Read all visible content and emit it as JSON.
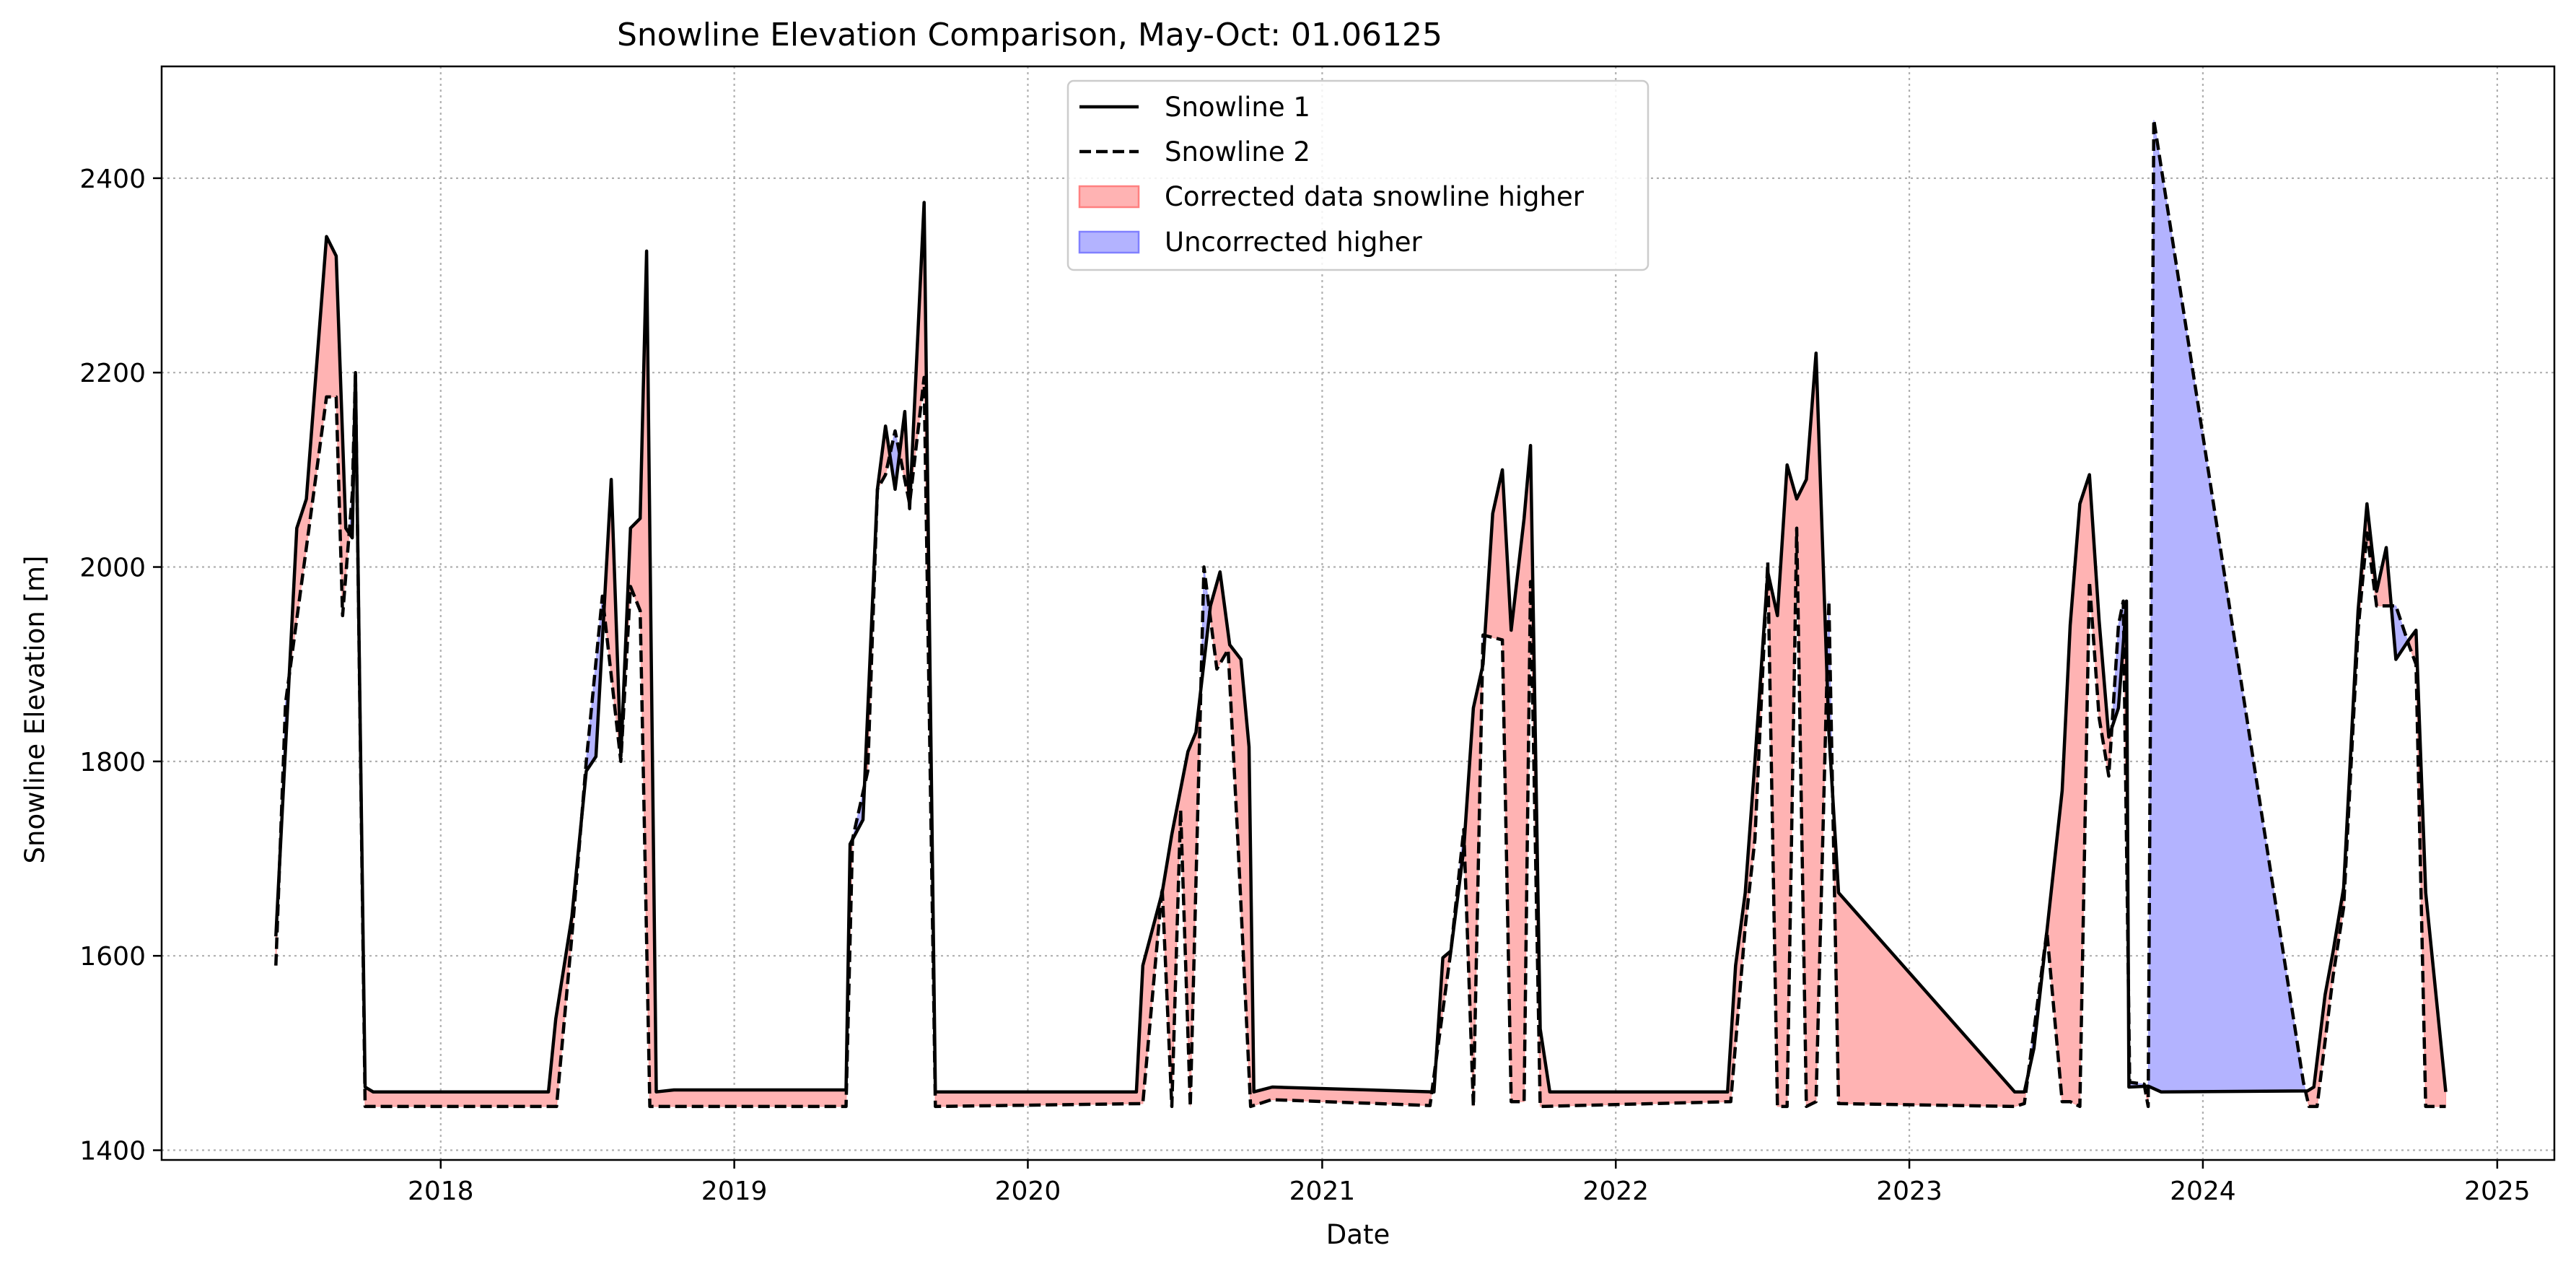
{
  "chart_data": {
    "type": "line",
    "title": "Snowline Elevation Comparison, May-Oct: 01.06125",
    "xlabel": "Date",
    "ylabel": "Snowline Elevation [m]",
    "xlim": [
      "2017-01-19",
      "2025-03-13"
    ],
    "ylim": [
      1390,
      2515
    ],
    "x_ticks": [
      "2018",
      "2019",
      "2020",
      "2021",
      "2022",
      "2023",
      "2024",
      "2025"
    ],
    "y_ticks": [
      1400,
      1600,
      1800,
      2000,
      2200,
      2400
    ],
    "grid": true,
    "legend_position": "top-center",
    "legend": [
      "Snowline 1",
      "Snowline 2",
      "Corrected data snowline higher",
      "Uncorrected higher"
    ],
    "colors": {
      "line": "#000000",
      "fill_higher": "#ffb3b3",
      "fill_higher_edge": "#ff8080",
      "fill_lower": "#b3b3ff",
      "fill_lower_edge": "#8080ff"
    },
    "series": [
      {
        "name": "Snowline 1",
        "style": "solid",
        "points": [
          [
            "2017-06-10",
            1620
          ],
          [
            "2017-07-06",
            2040
          ],
          [
            "2017-07-18",
            2070
          ],
          [
            "2017-08-12",
            2340
          ],
          [
            "2017-08-24",
            2320
          ],
          [
            "2017-09-05",
            2040
          ],
          [
            "2017-09-13",
            2030
          ],
          [
            "2017-09-17",
            2200
          ],
          [
            "2017-09-29",
            1465
          ],
          [
            "2017-10-09",
            1460
          ],
          [
            "2018-05-15",
            1460
          ],
          [
            "2018-05-24",
            1535
          ],
          [
            "2018-06-13",
            1640
          ],
          [
            "2018-07-01",
            1790
          ],
          [
            "2018-07-13",
            1805
          ],
          [
            "2018-08-01",
            2090
          ],
          [
            "2018-08-13",
            1805
          ],
          [
            "2018-08-25",
            2040
          ],
          [
            "2018-09-06",
            2050
          ],
          [
            "2018-09-14",
            2325
          ],
          [
            "2018-09-26",
            1460
          ],
          [
            "2018-10-18",
            1462
          ],
          [
            "2019-05-20",
            1462
          ],
          [
            "2019-05-25",
            1715
          ],
          [
            "2019-06-10",
            1740
          ],
          [
            "2019-06-28",
            2080
          ],
          [
            "2019-07-08",
            2145
          ],
          [
            "2019-07-20",
            2080
          ],
          [
            "2019-08-01",
            2160
          ],
          [
            "2019-08-07",
            2060
          ],
          [
            "2019-08-25",
            2375
          ],
          [
            "2019-09-08",
            1460
          ],
          [
            "2019-10-10",
            1460
          ],
          [
            "2020-05-15",
            1460
          ],
          [
            "2020-05-23",
            1590
          ],
          [
            "2020-06-16",
            1665
          ],
          [
            "2020-06-28",
            1725
          ],
          [
            "2020-07-18",
            1810
          ],
          [
            "2020-07-28",
            1830
          ],
          [
            "2020-08-15",
            1960
          ],
          [
            "2020-08-27",
            1995
          ],
          [
            "2020-09-08",
            1920
          ],
          [
            "2020-09-22",
            1905
          ],
          [
            "2020-10-02",
            1815
          ],
          [
            "2020-10-08",
            1460
          ],
          [
            "2020-10-31",
            1465
          ],
          [
            "2021-05-20",
            1460
          ],
          [
            "2021-05-31",
            1598
          ],
          [
            "2021-06-10",
            1605
          ],
          [
            "2021-06-26",
            1710
          ],
          [
            "2021-07-08",
            1855
          ],
          [
            "2021-07-20",
            1900
          ],
          [
            "2021-08-01",
            2055
          ],
          [
            "2021-08-13",
            2100
          ],
          [
            "2021-08-24",
            1935
          ],
          [
            "2021-09-09",
            2050
          ],
          [
            "2021-09-17",
            2125
          ],
          [
            "2021-09-29",
            1525
          ],
          [
            "2021-10-11",
            1460
          ],
          [
            "2022-05-20",
            1460
          ],
          [
            "2022-05-30",
            1590
          ],
          [
            "2022-06-11",
            1665
          ],
          [
            "2022-06-23",
            1800
          ],
          [
            "2022-07-09",
            1995
          ],
          [
            "2022-07-21",
            1950
          ],
          [
            "2022-08-02",
            2105
          ],
          [
            "2022-08-14",
            2070
          ],
          [
            "2022-08-26",
            2090
          ],
          [
            "2022-09-07",
            2220
          ],
          [
            "2022-09-23",
            1830
          ],
          [
            "2022-10-05",
            1665
          ],
          [
            "2023-05-12",
            1460
          ],
          [
            "2023-05-24",
            1460
          ],
          [
            "2023-06-05",
            1505
          ],
          [
            "2023-06-21",
            1625
          ],
          [
            "2023-07-10",
            1770
          ],
          [
            "2023-07-20",
            1940
          ],
          [
            "2023-08-01",
            2065
          ],
          [
            "2023-08-13",
            2095
          ],
          [
            "2023-08-25",
            1945
          ],
          [
            "2023-09-06",
            1825
          ],
          [
            "2023-09-18",
            1855
          ],
          [
            "2023-09-28",
            1965
          ],
          [
            "2023-10-01",
            1465
          ],
          [
            "2023-10-25",
            1466
          ],
          [
            "2023-11-10",
            1460
          ],
          [
            "2024-05-10",
            1461
          ],
          [
            "2024-05-18",
            1465
          ],
          [
            "2024-06-01",
            1560
          ],
          [
            "2024-06-11",
            1605
          ],
          [
            "2024-06-24",
            1670
          ],
          [
            "2024-07-12",
            1955
          ],
          [
            "2024-07-23",
            2065
          ],
          [
            "2024-08-04",
            1975
          ],
          [
            "2024-08-16",
            2020
          ],
          [
            "2024-08-28",
            1905
          ],
          [
            "2024-09-13",
            1925
          ],
          [
            "2024-09-22",
            1935
          ],
          [
            "2024-10-04",
            1665
          ],
          [
            "2024-10-29",
            1460
          ]
        ]
      },
      {
        "name": "Snowline 2",
        "style": "dashed",
        "points": [
          [
            "2017-06-10",
            1590
          ],
          [
            "2017-06-22",
            1860
          ],
          [
            "2017-07-18",
            2020
          ],
          [
            "2017-08-12",
            2175
          ],
          [
            "2017-08-24",
            2175
          ],
          [
            "2017-09-01",
            1950
          ],
          [
            "2017-09-13",
            2075
          ],
          [
            "2017-09-17",
            2200
          ],
          [
            "2017-09-29",
            1445
          ],
          [
            "2018-05-25",
            1445
          ],
          [
            "2018-06-13",
            1620
          ],
          [
            "2018-07-01",
            1800
          ],
          [
            "2018-07-21",
            1970
          ],
          [
            "2018-08-13",
            1800
          ],
          [
            "2018-08-25",
            1980
          ],
          [
            "2018-09-06",
            1955
          ],
          [
            "2018-09-18",
            1445
          ],
          [
            "2019-05-20",
            1445
          ],
          [
            "2019-05-28",
            1720
          ],
          [
            "2019-06-16",
            1790
          ],
          [
            "2019-06-28",
            2080
          ],
          [
            "2019-07-08",
            2095
          ],
          [
            "2019-07-20",
            2140
          ],
          [
            "2019-08-07",
            2065
          ],
          [
            "2019-08-25",
            2195
          ],
          [
            "2019-09-08",
            1445
          ],
          [
            "2020-05-23",
            1448
          ],
          [
            "2020-06-16",
            1670
          ],
          [
            "2020-06-28",
            1445
          ],
          [
            "2020-07-09",
            1750
          ],
          [
            "2020-07-21",
            1445
          ],
          [
            "2020-08-07",
            2000
          ],
          [
            "2020-08-23",
            1895
          ],
          [
            "2020-09-06",
            1915
          ],
          [
            "2020-09-18",
            1720
          ],
          [
            "2020-10-04",
            1445
          ],
          [
            "2020-10-30",
            1452
          ],
          [
            "2021-05-15",
            1446
          ],
          [
            "2021-06-10",
            1605
          ],
          [
            "2021-06-26",
            1730
          ],
          [
            "2021-07-08",
            1445
          ],
          [
            "2021-07-20",
            1930
          ],
          [
            "2021-08-13",
            1925
          ],
          [
            "2021-08-24",
            1450
          ],
          [
            "2021-09-09",
            1450
          ],
          [
            "2021-09-17",
            1985
          ],
          [
            "2021-09-29",
            1445
          ],
          [
            "2022-05-24",
            1450
          ],
          [
            "2022-06-11",
            1630
          ],
          [
            "2022-06-23",
            1720
          ],
          [
            "2022-07-09",
            2005
          ],
          [
            "2022-07-21",
            1445
          ],
          [
            "2022-08-02",
            1445
          ],
          [
            "2022-08-14",
            2040
          ],
          [
            "2022-08-26",
            1445
          ],
          [
            "2022-09-07",
            1450
          ],
          [
            "2022-09-23",
            1965
          ],
          [
            "2022-10-05",
            1448
          ],
          [
            "2023-05-12",
            1445
          ],
          [
            "2023-05-24",
            1448
          ],
          [
            "2023-06-21",
            1625
          ],
          [
            "2023-07-10",
            1450
          ],
          [
            "2023-07-20",
            1450
          ],
          [
            "2023-08-01",
            1445
          ],
          [
            "2023-08-13",
            1985
          ],
          [
            "2023-08-25",
            1845
          ],
          [
            "2023-09-06",
            1785
          ],
          [
            "2023-09-18",
            1940
          ],
          [
            "2023-09-24",
            1965
          ],
          [
            "2023-10-02",
            1470
          ],
          [
            "2023-10-20",
            1468
          ],
          [
            "2023-10-25",
            1445
          ],
          [
            "2023-11-01",
            2460
          ],
          [
            "2024-05-05",
            1470
          ],
          [
            "2024-05-12",
            1445
          ],
          [
            "2024-05-22",
            1445
          ],
          [
            "2024-06-11",
            1580
          ],
          [
            "2024-06-24",
            1650
          ],
          [
            "2024-07-12",
            1935
          ],
          [
            "2024-07-23",
            2035
          ],
          [
            "2024-08-04",
            1960
          ],
          [
            "2024-08-16",
            1960
          ],
          [
            "2024-08-28",
            1960
          ],
          [
            "2024-09-13",
            1920
          ],
          [
            "2024-09-22",
            1900
          ],
          [
            "2024-10-04",
            1445
          ],
          [
            "2024-10-29",
            1445
          ]
        ]
      }
    ]
  }
}
